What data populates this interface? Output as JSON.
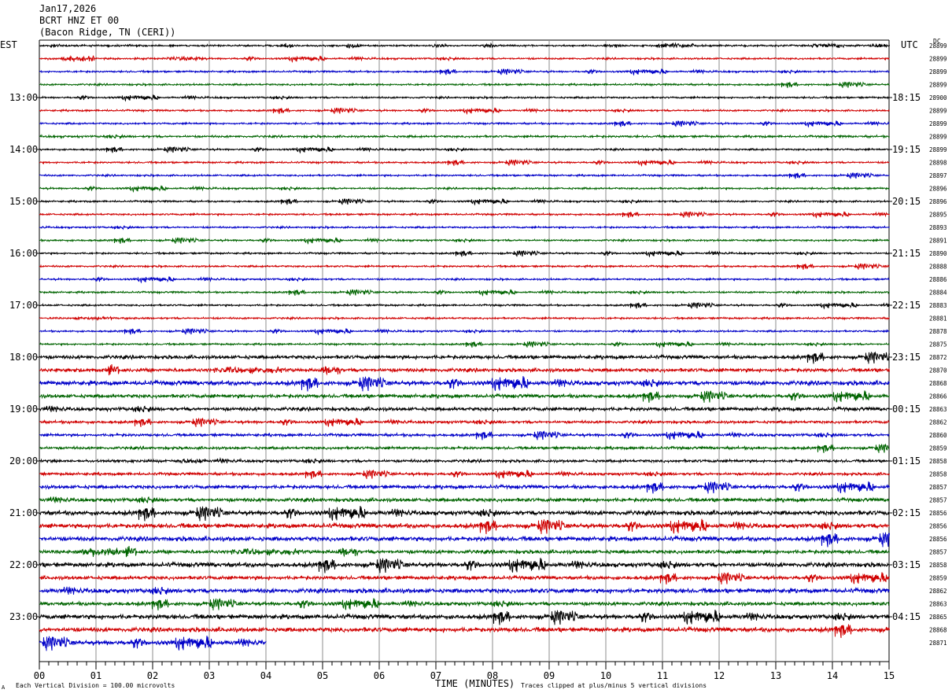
{
  "header": {
    "date": "Jan17,2026",
    "station": "BCRT HNZ ET 00",
    "location": "(Bacon Ridge, TN (CERI))"
  },
  "corner_labels": {
    "left": "EST",
    "right": "UTC",
    "dc": "DC"
  },
  "footer": {
    "scale_mark": "A",
    "scale": "Each Vertical Division =  100.00 microvolts",
    "clip": "Traces clipped at plus/minus 5 vertical divisions"
  },
  "chart_data": {
    "type": "line",
    "title": "",
    "xlabel": "TIME (MINUTES)",
    "ylabel": "",
    "xlim": [
      0,
      15
    ],
    "x_ticks": [
      "00",
      "01",
      "02",
      "03",
      "04",
      "05",
      "06",
      "07",
      "08",
      "09",
      "10",
      "11",
      "12",
      "13",
      "14",
      "15"
    ],
    "grid": true,
    "trace_colors": [
      "#000000",
      "#d00000",
      "#0000c8",
      "#006400"
    ],
    "left_hour_labels": [
      {
        "trace": 4,
        "label": "13:00"
      },
      {
        "trace": 8,
        "label": "14:00"
      },
      {
        "trace": 12,
        "label": "15:00"
      },
      {
        "trace": 16,
        "label": "16:00"
      },
      {
        "trace": 20,
        "label": "17:00"
      },
      {
        "trace": 24,
        "label": "18:00"
      },
      {
        "trace": 28,
        "label": "19:00"
      },
      {
        "trace": 32,
        "label": "20:00"
      },
      {
        "trace": 36,
        "label": "21:00"
      },
      {
        "trace": 40,
        "label": "22:00"
      },
      {
        "trace": 44,
        "label": "23:00"
      }
    ],
    "right_hour_labels": [
      {
        "trace": 4,
        "label": "18:15"
      },
      {
        "trace": 8,
        "label": "19:15"
      },
      {
        "trace": 12,
        "label": "20:15"
      },
      {
        "trace": 16,
        "label": "21:15"
      },
      {
        "trace": 20,
        "label": "22:15"
      },
      {
        "trace": 24,
        "label": "23:15"
      },
      {
        "trace": 28,
        "label": "00:15"
      },
      {
        "trace": 32,
        "label": "01:15"
      },
      {
        "trace": 36,
        "label": "02:15"
      },
      {
        "trace": 40,
        "label": "03:15"
      },
      {
        "trace": 44,
        "label": "04:15"
      }
    ],
    "dc_offsets": [
      "28899",
      "28899",
      "28899",
      "28899",
      "28900",
      "28899",
      "28899",
      "28899",
      "28899",
      "28898",
      "28897",
      "28896",
      "28896",
      "28895",
      "28893",
      "28891",
      "28890",
      "28888",
      "28886",
      "28884",
      "28883",
      "28881",
      "28878",
      "28875",
      "28872",
      "28870",
      "28868",
      "28866",
      "28863",
      "28862",
      "28860",
      "28859",
      "28858",
      "28858",
      "28857",
      "28857",
      "28856",
      "28856",
      "28856",
      "28857",
      "28858",
      "28859",
      "28862",
      "28863",
      "28865",
      "28868",
      "28871"
    ],
    "trace_noise_level": [
      1,
      1,
      1,
      1,
      1,
      1,
      1,
      1.2,
      1,
      1,
      1,
      1,
      1,
      1,
      1,
      1,
      1,
      1,
      1,
      1,
      1,
      1,
      1,
      1,
      2,
      2,
      2.5,
      2,
      2,
      1.5,
      1.5,
      1.5,
      1.5,
      1.5,
      2,
      2,
      2.5,
      2.5,
      2.5,
      2,
      2.5,
      2,
      2.5,
      2,
      2.5,
      2.5,
      2.5
    ],
    "last_trace_end_minute": 4.0
  }
}
